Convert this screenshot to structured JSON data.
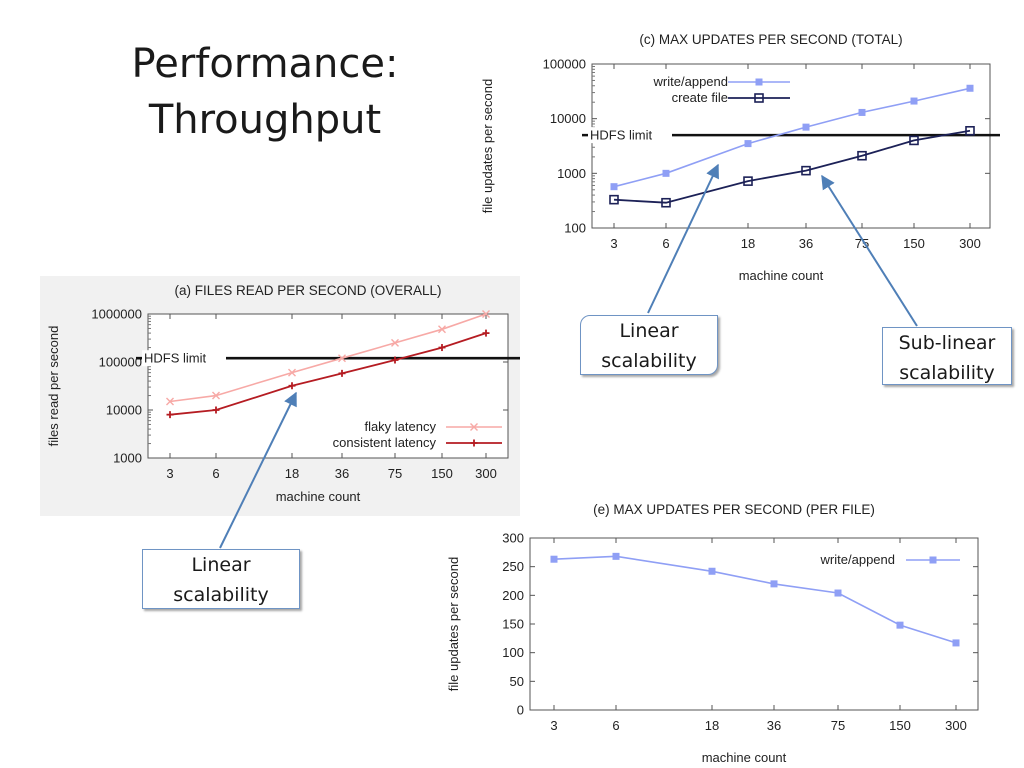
{
  "slide": {
    "title_line1": "Performance:",
    "title_line2": "Throughput"
  },
  "callouts": {
    "c_linear": [
      "Linear",
      "scalability"
    ],
    "c_sublinear": [
      "Sub-linear",
      "scalability"
    ],
    "a_linear": [
      "Linear",
      "scalability"
    ]
  },
  "colors": {
    "write_append": "#8f9ff5",
    "create_file": "#1c2157",
    "flaky": "#f7a9a6",
    "consistent": "#b51c22",
    "limit": "#111111",
    "arrow": "#4f7fb7"
  },
  "chart_data": [
    {
      "id": "c",
      "type": "line",
      "title": "(c) MAX UPDATES PER SECOND (TOTAL)",
      "xlabel": "machine count",
      "ylabel": "file updates per second",
      "y_scale": "log",
      "ylim": [
        100,
        100000
      ],
      "y_ticks": [
        100,
        1000,
        10000,
        100000
      ],
      "y_tick_labels": [
        "100",
        "1000",
        "10000",
        "100000"
      ],
      "categories": [
        "3",
        "6",
        "18",
        "36",
        "75",
        "150",
        "300"
      ],
      "legend_position": "top-left",
      "series": [
        {
          "name": "write/append",
          "values": [
            570,
            1000,
            3500,
            7000,
            13000,
            21000,
            36000
          ]
        },
        {
          "name": "create file",
          "values": [
            330,
            290,
            720,
            1120,
            2100,
            4000,
            6000
          ]
        }
      ],
      "reference_line": {
        "label": "HDFS limit",
        "value": 5000
      }
    },
    {
      "id": "a",
      "type": "line",
      "title": "(a) FILES READ PER SECOND (OVERALL)",
      "xlabel": "machine count",
      "ylabel": "files read per second",
      "y_scale": "log",
      "ylim": [
        1000,
        1000000
      ],
      "y_ticks": [
        1000,
        10000,
        100000,
        1000000
      ],
      "y_tick_labels": [
        "1000",
        "10000",
        "100000",
        "1000000"
      ],
      "categories": [
        "3",
        "6",
        "18",
        "36",
        "75",
        "150",
        "300"
      ],
      "legend_position": "bottom-right",
      "series": [
        {
          "name": "flaky latency",
          "values": [
            15000,
            20000,
            60000,
            120000,
            250000,
            480000,
            1000000
          ]
        },
        {
          "name": "consistent latency",
          "values": [
            8000,
            10000,
            32000,
            58000,
            110000,
            200000,
            400000
          ]
        }
      ],
      "reference_line": {
        "label": "HDFS limit",
        "value": 120000
      }
    },
    {
      "id": "e",
      "type": "line",
      "title": "(e) MAX UPDATES PER SECOND (PER FILE)",
      "xlabel": "machine count",
      "ylabel": "file updates per second",
      "y_scale": "linear",
      "ylim": [
        0,
        300
      ],
      "y_ticks": [
        0,
        50,
        100,
        150,
        200,
        250,
        300
      ],
      "y_tick_labels": [
        "0",
        "50",
        "100",
        "150",
        "200",
        "250",
        "300"
      ],
      "categories": [
        "3",
        "6",
        "18",
        "36",
        "75",
        "150",
        "300"
      ],
      "legend_position": "top-right",
      "series": [
        {
          "name": "write/append",
          "values": [
            263,
            268,
            242,
            220,
            204,
            148,
            117
          ]
        }
      ]
    }
  ]
}
